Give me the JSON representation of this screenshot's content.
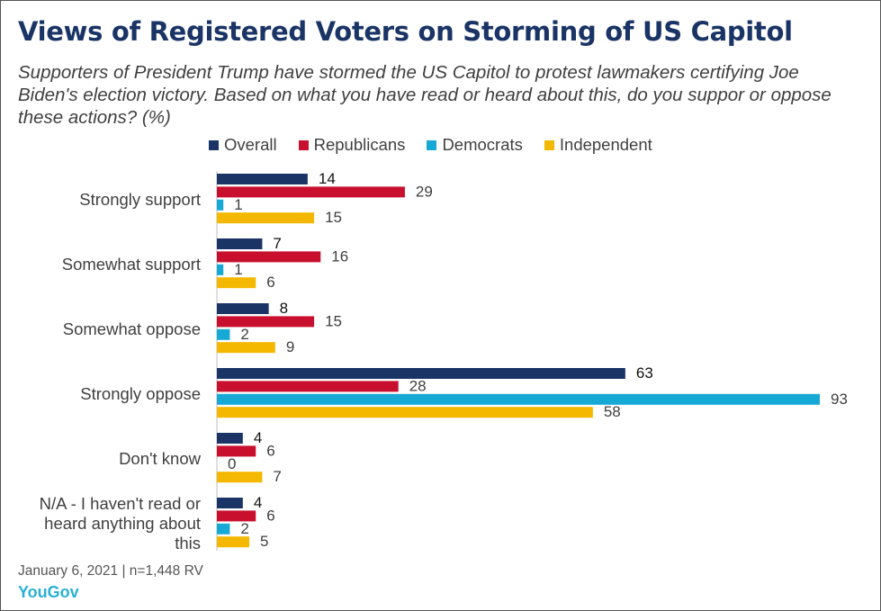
{
  "title": "Views of Registered Voters on Storming of US Capitol",
  "subtitle": "Supporters of President Trump have stormed the US Capitol to protest lawmakers certifying Joe Biden's election victory. Based on what you have read or heard about this, do you suppor or oppose these actions? (%)",
  "footer": {
    "date_sample": "January 6, 2021 | n=1,448 RV",
    "brand": "YouGov"
  },
  "colors": {
    "Overall": "#1a3466",
    "Republicans": "#c8102e",
    "Democrats": "#17a9d6",
    "Independent": "#f5b800"
  },
  "chart_data": {
    "type": "bar",
    "orientation": "horizontal",
    "categories": [
      "Strongly support",
      "Somewhat support",
      "Somewhat oppose",
      "Strongly oppose",
      "Don't know",
      "N/A - I haven't read or heard anything about this"
    ],
    "category_lines": [
      [
        "Strongly support"
      ],
      [
        "Somewhat support"
      ],
      [
        "Somewhat oppose"
      ],
      [
        "Strongly oppose"
      ],
      [
        "Don't know"
      ],
      [
        "N/A - I haven't read or",
        "heard anything about",
        "this"
      ]
    ],
    "series": [
      {
        "name": "Overall",
        "values": [
          14,
          7,
          8,
          63,
          4,
          4
        ]
      },
      {
        "name": "Republicans",
        "values": [
          29,
          16,
          15,
          28,
          6,
          6
        ]
      },
      {
        "name": "Democrats",
        "values": [
          1,
          1,
          2,
          93,
          0,
          2
        ]
      },
      {
        "name": "Independent",
        "values": [
          15,
          6,
          9,
          58,
          7,
          5
        ]
      }
    ],
    "xlim": [
      0,
      93
    ],
    "data_labels": true,
    "grid": false,
    "legend": "top"
  }
}
